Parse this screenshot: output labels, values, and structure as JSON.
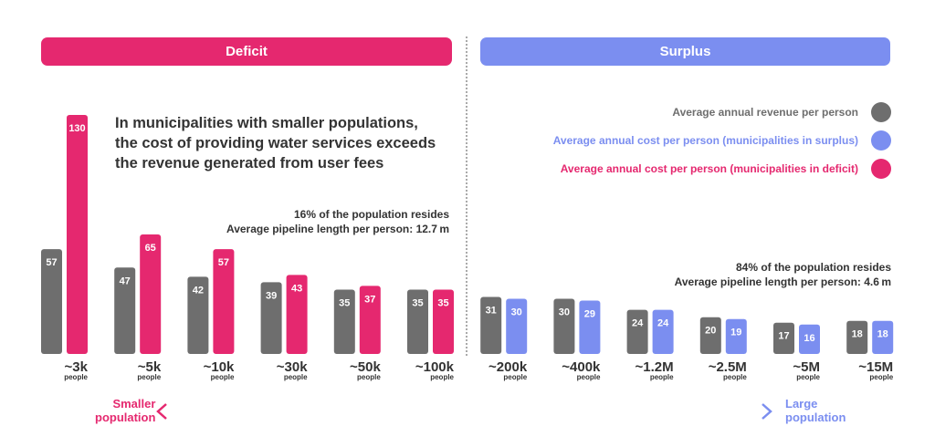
{
  "banners": {
    "deficit": "Deficit",
    "surplus": "Surplus"
  },
  "headline": [
    "In municipalities with smaller populations,",
    "the cost of providing water services exceeds",
    "the revenue generated from user fees"
  ],
  "notes": {
    "deficit": [
      "16% of the population resides",
      "Average pipeline length per person: 12.7 m"
    ],
    "surplus": [
      "84% of the population resides",
      "Average pipeline length per person: 4.6 m"
    ]
  },
  "legend": [
    {
      "label": "Average annual revenue per person",
      "color": "#6e6e6e"
    },
    {
      "label": "Average annual cost per person (municipalities in surplus)",
      "color": "#7b8ef0"
    },
    {
      "label": "Average annual cost per person (municipalities in deficit)",
      "color": "#e5286f"
    }
  ],
  "axis": {
    "left_label": [
      "Smaller",
      "population"
    ],
    "right_label": [
      "Large",
      "population"
    ]
  },
  "colors": {
    "revenue": "#6e6e6e",
    "deficit": "#e5286f",
    "surplus": "#7b8ef0"
  },
  "chart_data": {
    "type": "bar",
    "title": "",
    "xlabel": "",
    "ylabel": "",
    "categories": [
      "~3k",
      "~5k",
      "~10k",
      "~30k",
      "~50k",
      "~100k",
      "~200k",
      "~400k",
      "~1.2M",
      "~2.5M",
      "~5M",
      "~15M"
    ],
    "category_sublabel": "people",
    "groups": [
      "deficit",
      "deficit",
      "deficit",
      "deficit",
      "deficit",
      "deficit",
      "surplus",
      "surplus",
      "surplus",
      "surplus",
      "surplus",
      "surplus"
    ],
    "series": [
      {
        "name": "Average annual revenue per person",
        "values": [
          57,
          47,
          42,
          39,
          35,
          35,
          31,
          30,
          24,
          20,
          17,
          18
        ]
      },
      {
        "name": "Average annual cost per person",
        "values": [
          130,
          65,
          57,
          43,
          37,
          35,
          30,
          29,
          24,
          19,
          16,
          18
        ]
      }
    ],
    "ylim": [
      0,
      130
    ],
    "grid": false,
    "legend_position": "top-right"
  }
}
